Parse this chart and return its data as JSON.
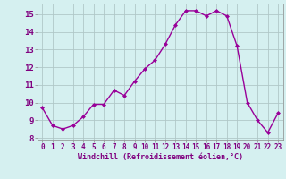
{
  "x": [
    0,
    1,
    2,
    3,
    4,
    5,
    6,
    7,
    8,
    9,
    10,
    11,
    12,
    13,
    14,
    15,
    16,
    17,
    18,
    19,
    20,
    21,
    22,
    23
  ],
  "y": [
    9.7,
    8.7,
    8.5,
    8.7,
    9.2,
    9.9,
    9.9,
    10.7,
    10.4,
    11.2,
    11.9,
    12.4,
    13.3,
    14.4,
    15.2,
    15.2,
    14.9,
    15.2,
    14.9,
    13.2,
    10.0,
    9.0,
    8.3,
    9.4
  ],
  "line_color": "#990099",
  "marker": "D",
  "markersize": 2.0,
  "linewidth": 1.0,
  "bg_color": "#d5f0f0",
  "grid_color": "#b0c8c8",
  "xlabel": "Windchill (Refroidissement éolien,°C)",
  "xlabel_color": "#800080",
  "tick_color": "#800080",
  "ylim": [
    7.9,
    15.6
  ],
  "xlim": [
    -0.5,
    23.5
  ],
  "yticks": [
    8,
    9,
    10,
    11,
    12,
    13,
    14,
    15
  ],
  "xticks": [
    0,
    1,
    2,
    3,
    4,
    5,
    6,
    7,
    8,
    9,
    10,
    11,
    12,
    13,
    14,
    15,
    16,
    17,
    18,
    19,
    20,
    21,
    22,
    23
  ],
  "tick_fontsize": 5.5,
  "xlabel_fontsize": 6.0,
  "ytick_fontsize": 6.5
}
